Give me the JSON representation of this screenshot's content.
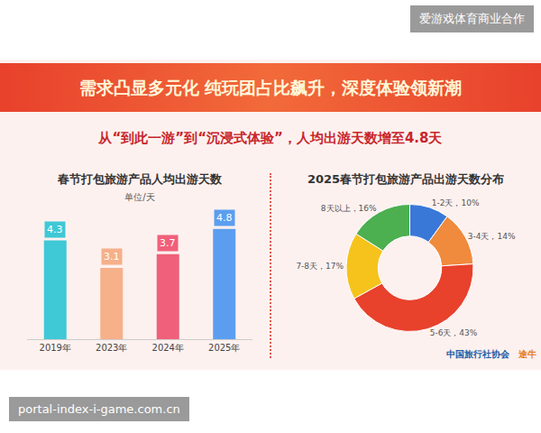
{
  "watermark_top": "爱游戏体育商业合作",
  "banner": "需求凸显多元化 纯玩团占比飙升，深度体验领新潮",
  "subtitle": "从“到此一游”到“沉浸式体验”，人均出游天数增至4.8天",
  "chart_data": [
    {
      "type": "bar",
      "title": "春节打包旅游产品人均出游天数",
      "unit": "单位/天",
      "categories": [
        "2019年",
        "2023年",
        "2024年",
        "2025年"
      ],
      "values": [
        4.3,
        3.1,
        3.7,
        4.8
      ],
      "colors": [
        "#3fc8d6",
        "#f6b08a",
        "#f0607a",
        "#5b9ef0"
      ],
      "ylim": [
        0,
        5.5
      ],
      "tick_labels": "x",
      "data_labels": true,
      "grid": false
    },
    {
      "type": "pie",
      "title": "2025春节打包旅游产品出游天数分布",
      "categories": [
        "1-2天",
        "3-4天",
        "5-6天",
        "7-8天",
        "8天以上"
      ],
      "values": [
        10,
        14,
        43,
        17,
        16
      ],
      "value_labels": [
        "1-2天，10%",
        "3-4天，14%",
        "5-6天，43%",
        "7-8天，17%",
        "8天以上，16%"
      ],
      "colors": [
        "#3a78d8",
        "#f08a3c",
        "#e8412c",
        "#f5c31c",
        "#4caf50"
      ],
      "data_labels": true
    }
  ],
  "logos": [
    "中国旅行社协会",
    "途牛"
  ],
  "watermark_bottom": "portal-index-i-game.com.cn"
}
